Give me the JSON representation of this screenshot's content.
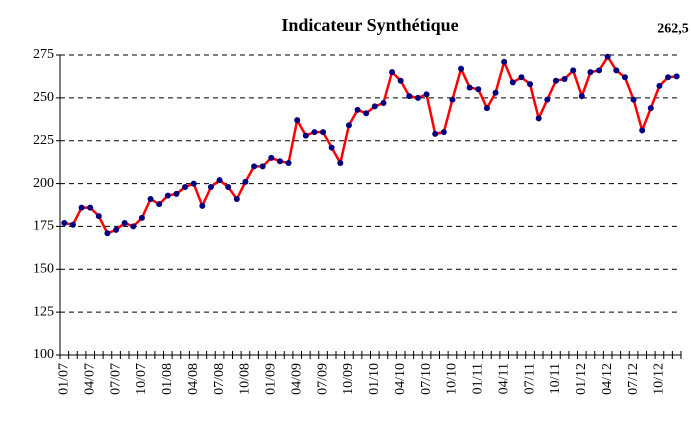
{
  "chart_data": {
    "type": "line",
    "title": "Indicateur Synthétique",
    "categories": [
      "01/07",
      null,
      null,
      "04/07",
      null,
      null,
      "07/07",
      null,
      null,
      "10/07",
      null,
      null,
      "01/08",
      null,
      null,
      "04/08",
      null,
      null,
      "07/08",
      null,
      null,
      "10/08",
      null,
      null,
      "01/09",
      null,
      null,
      "04/09",
      null,
      null,
      "07/09",
      null,
      null,
      "10/09",
      null,
      null,
      "01/10",
      null,
      null,
      "04/10",
      null,
      null,
      "07/10",
      null,
      null,
      "10/10",
      null,
      null,
      "01/11",
      null,
      null,
      "04/11",
      null,
      null,
      "07/11",
      null,
      null,
      "10/11",
      null,
      null,
      "01/12",
      null,
      null,
      "04/12",
      null,
      null,
      "07/12",
      null,
      null,
      "10/12",
      null,
      null
    ],
    "values": [
      177,
      176,
      186,
      186,
      181,
      171,
      173,
      177,
      175,
      180,
      191,
      188,
      193,
      194,
      198,
      200,
      187,
      198,
      202,
      198,
      191,
      201,
      210,
      210,
      215,
      213,
      212,
      237,
      228,
      230,
      230,
      221,
      212,
      234,
      243,
      241,
      245,
      247,
      265,
      260,
      251,
      250,
      252,
      229,
      230,
      249,
      267,
      256,
      255,
      244,
      253,
      271,
      259,
      262,
      258,
      238,
      249,
      260,
      261,
      266,
      251,
      265,
      266,
      274,
      266,
      262,
      249,
      231,
      244,
      257,
      262,
      262.5
    ],
    "value_labels": [
      null,
      null,
      null,
      null,
      null,
      null,
      null,
      null,
      null,
      null,
      null,
      null,
      null,
      null,
      null,
      null,
      null,
      null,
      null,
      null,
      null,
      null,
      null,
      null,
      null,
      null,
      null,
      null,
      null,
      null,
      null,
      null,
      null,
      null,
      null,
      null,
      null,
      null,
      null,
      null,
      null,
      null,
      null,
      null,
      null,
      null,
      null,
      null,
      null,
      null,
      null,
      null,
      null,
      null,
      null,
      null,
      null,
      null,
      null,
      null,
      null,
      null,
      null,
      null,
      null,
      null,
      null,
      null,
      null,
      null,
      null,
      "262,5"
    ],
    "color": "#ff0000",
    "marker_color": "#000080",
    "ylim": [
      100,
      275
    ],
    "yticks": [
      100,
      125,
      150,
      175,
      200,
      225,
      250,
      275
    ],
    "grid": true
  }
}
